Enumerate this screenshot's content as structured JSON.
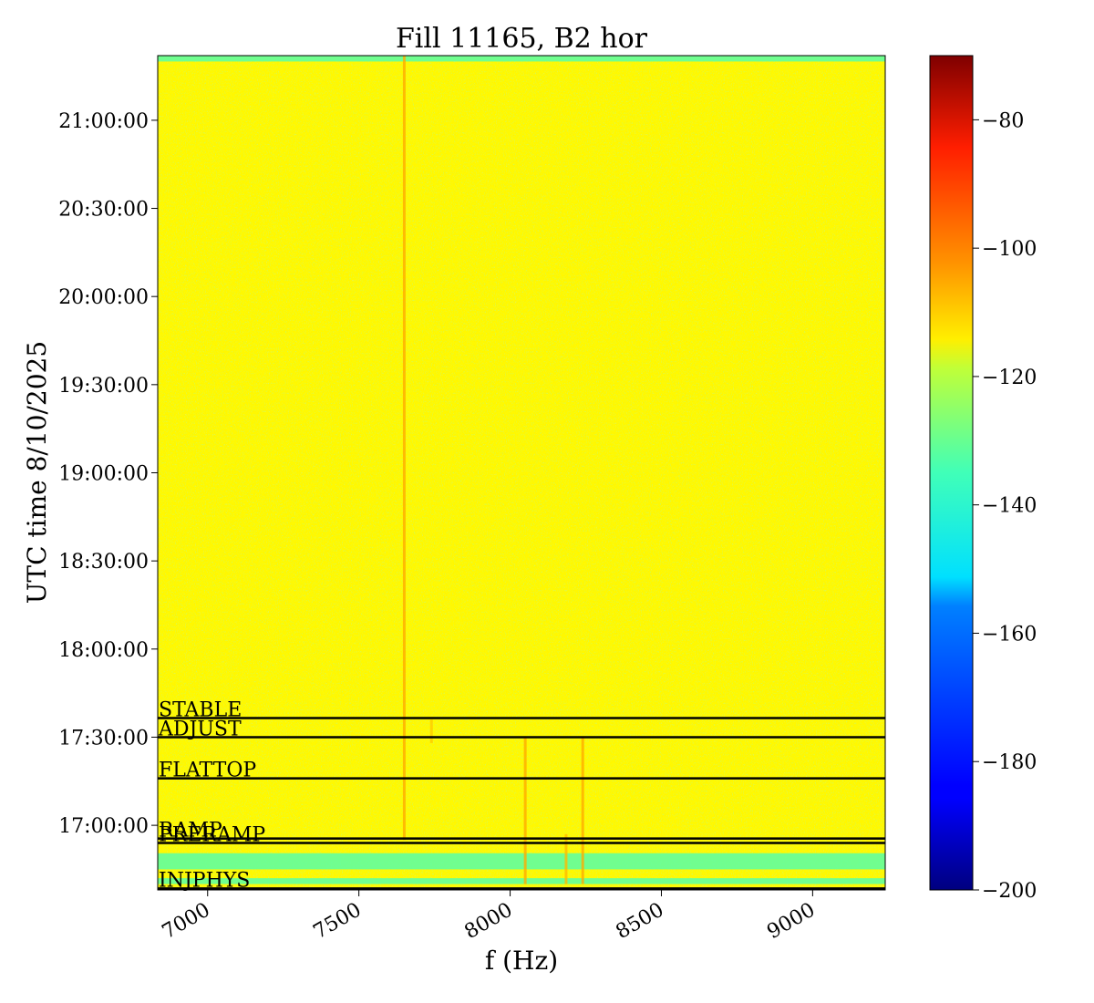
{
  "chart_data": {
    "type": "heatmap",
    "title": "Fill 11165, B2 hor",
    "xlabel": "f (Hz)",
    "ylabel": "UTC time 8/10/2025",
    "x_range": [
      6835,
      9240
    ],
    "y_range": [
      "16:38:00",
      "21:22:00"
    ],
    "x_ticks": [
      7000,
      7500,
      8000,
      8500,
      9000
    ],
    "x_tick_labels": [
      "7000",
      "7500",
      "8000",
      "8500",
      "9000"
    ],
    "y_ticks": [
      "17:00:00",
      "17:30:00",
      "18:00:00",
      "18:30:00",
      "19:00:00",
      "19:30:00",
      "20:00:00",
      "20:30:00",
      "21:00:00"
    ],
    "colorbar": {
      "range": [
        -200,
        -70
      ],
      "ticks": [
        -200,
        -180,
        -160,
        -140,
        -120,
        -100,
        -80
      ],
      "tick_labels": [
        "−200",
        "−180",
        "−160",
        "−140",
        "−120",
        "−100",
        "−80"
      ],
      "colormap": "jet"
    },
    "background_level": -118,
    "phases": [
      {
        "name": "INJPHYS",
        "time": "16:38:30"
      },
      {
        "name": "PRERAMP",
        "time": "16:54:00"
      },
      {
        "name": "RAMP",
        "time": "16:55:30"
      },
      {
        "name": "FLATTOP",
        "time": "17:16:00"
      },
      {
        "name": "ADJUST",
        "time": "17:30:00"
      },
      {
        "name": "STABLE",
        "time": "17:36:30"
      }
    ],
    "spectral_lines": [
      {
        "f": 7650,
        "from": "16:55:00",
        "to": "21:22:00",
        "level": -108
      },
      {
        "f": 7740,
        "from": "17:28:00",
        "to": "17:36:00",
        "level": -112
      },
      {
        "f": 8050,
        "from": "16:40:00",
        "to": "17:30:00",
        "level": -108
      },
      {
        "f": 8240,
        "from": "16:40:00",
        "to": "17:30:00",
        "level": -108
      },
      {
        "f": 8185,
        "from": "16:40:00",
        "to": "16:57:00",
        "level": -110
      }
    ],
    "low_level_bands": [
      {
        "from": "16:45:00",
        "to": "16:50:30",
        "level": -140
      },
      {
        "from": "16:40:00",
        "to": "16:42:00",
        "level": -140
      },
      {
        "from": "21:20:00",
        "to": "21:22:00",
        "level": -140
      }
    ]
  }
}
